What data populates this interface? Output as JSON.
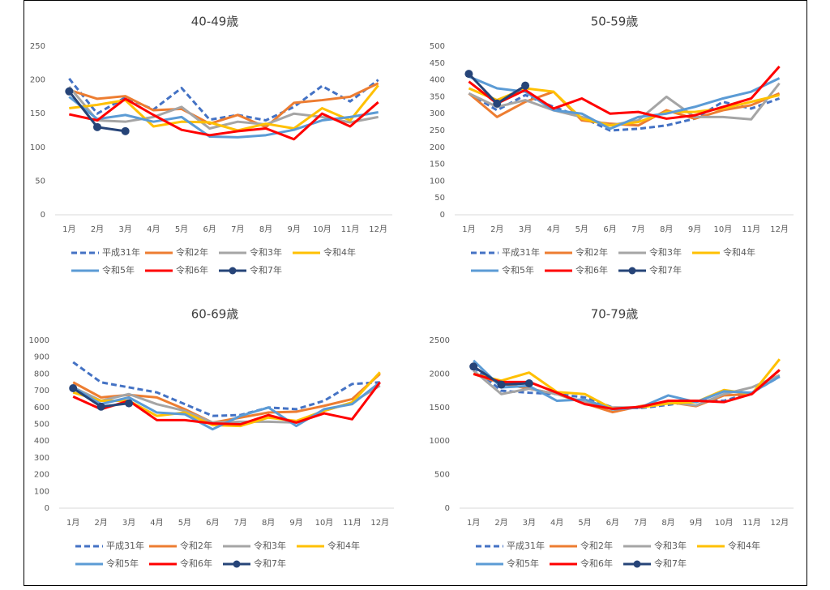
{
  "chart_data": [
    {
      "type": "line",
      "title": "40-49歳",
      "categories": [
        "1月",
        "2月",
        "3月",
        "4月",
        "5月",
        "6月",
        "7月",
        "8月",
        "9月",
        "10月",
        "11月",
        "12月"
      ],
      "ylim": [
        0,
        250
      ],
      "yticks": [
        0,
        50,
        100,
        150,
        200,
        250
      ],
      "series": [
        {
          "name": "平成31年",
          "color": "#4472c4",
          "dash": true,
          "values": [
            202,
            150,
            174,
            156,
            188,
            141,
            148,
            140,
            160,
            191,
            168,
            200
          ]
        },
        {
          "name": "令和2年",
          "color": "#ed7d31",
          "values": [
            185,
            172,
            176,
            155,
            157,
            135,
            148,
            130,
            166,
            170,
            175,
            195
          ]
        },
        {
          "name": "令和3年",
          "color": "#a5a5a5",
          "values": [
            190,
            140,
            138,
            145,
            160,
            128,
            138,
            134,
            150,
            145,
            137,
            145
          ]
        },
        {
          "name": "令和4年",
          "color": "#ffc000",
          "values": [
            158,
            163,
            170,
            131,
            138,
            137,
            125,
            135,
            128,
            158,
            140,
            192
          ]
        },
        {
          "name": "令和5年",
          "color": "#5b9bd5",
          "values": [
            175,
            142,
            148,
            138,
            145,
            116,
            115,
            118,
            126,
            140,
            145,
            152
          ]
        },
        {
          "name": "令和6年",
          "color": "#ff0000",
          "values": [
            149,
            140,
            172,
            148,
            126,
            118,
            124,
            128,
            112,
            150,
            131,
            167
          ]
        },
        {
          "name": "令和7年",
          "color": "#264478",
          "markers": true,
          "values": [
            183,
            130,
            124,
            null,
            null,
            null,
            null,
            null,
            null,
            null,
            null,
            null
          ]
        }
      ]
    },
    {
      "type": "line",
      "title": "50-59歳",
      "categories": [
        "1月",
        "2月",
        "3月",
        "4月",
        "5月",
        "6月",
        "7月",
        "8月",
        "9月",
        "10月",
        "11月",
        "12月"
      ],
      "ylim": [
        0,
        500
      ],
      "yticks": [
        0,
        50,
        100,
        150,
        200,
        250,
        300,
        350,
        400,
        450,
        500
      ],
      "series": [
        {
          "name": "平成31年",
          "color": "#4472c4",
          "dash": true,
          "values": [
            360,
            310,
            355,
            320,
            290,
            250,
            255,
            265,
            285,
            335,
            315,
            345
          ]
        },
        {
          "name": "令和2年",
          "color": "#ed7d31",
          "values": [
            360,
            290,
            335,
            365,
            280,
            270,
            265,
            310,
            285,
            310,
            325,
            360
          ]
        },
        {
          "name": "令和3年",
          "color": "#a5a5a5",
          "values": [
            360,
            320,
            340,
            310,
            290,
            265,
            280,
            350,
            290,
            290,
            283,
            390
          ]
        },
        {
          "name": "令和4年",
          "color": "#ffc000",
          "values": [
            375,
            340,
            375,
            365,
            285,
            265,
            275,
            305,
            305,
            315,
            335,
            355
          ]
        },
        {
          "name": "令和5年",
          "color": "#5b9bd5",
          "values": [
            410,
            375,
            365,
            310,
            300,
            255,
            290,
            300,
            320,
            345,
            365,
            405
          ]
        },
        {
          "name": "令和6年",
          "color": "#ff0000",
          "values": [
            395,
            330,
            370,
            315,
            345,
            300,
            305,
            285,
            295,
            320,
            345,
            440
          ]
        },
        {
          "name": "令和7年",
          "color": "#264478",
          "markers": true,
          "values": [
            418,
            330,
            383,
            null,
            null,
            null,
            null,
            null,
            null,
            null,
            null,
            null
          ]
        }
      ]
    },
    {
      "type": "line",
      "title": "60-69歳",
      "categories": [
        "1月",
        "2月",
        "3月",
        "4月",
        "5月",
        "6月",
        "7月",
        "8月",
        "9月",
        "10月",
        "11月",
        "12月"
      ],
      "ylim": [
        0,
        1000
      ],
      "yticks": [
        0,
        100,
        200,
        300,
        400,
        500,
        600,
        700,
        800,
        900,
        1000
      ],
      "series": [
        {
          "name": "平成31年",
          "color": "#4472c4",
          "dash": true,
          "values": [
            870,
            750,
            720,
            690,
            620,
            550,
            555,
            600,
            590,
            640,
            740,
            750
          ]
        },
        {
          "name": "令和2年",
          "color": "#ed7d31",
          "values": [
            750,
            660,
            675,
            660,
            590,
            510,
            540,
            570,
            575,
            610,
            650,
            800
          ]
        },
        {
          "name": "令和3年",
          "color": "#a5a5a5",
          "values": [
            720,
            640,
            680,
            620,
            580,
            510,
            515,
            515,
            510,
            580,
            630,
            730
          ]
        },
        {
          "name": "令和4年",
          "color": "#ffc000",
          "values": [
            690,
            640,
            640,
            550,
            570,
            495,
            490,
            540,
            520,
            580,
            630,
            810
          ]
        },
        {
          "name": "令和5年",
          "color": "#5b9bd5",
          "values": [
            720,
            620,
            660,
            570,
            560,
            470,
            550,
            600,
            490,
            590,
            620,
            750
          ]
        },
        {
          "name": "令和6年",
          "color": "#ff0000",
          "values": [
            665,
            590,
            640,
            525,
            525,
            505,
            500,
            555,
            510,
            565,
            530,
            750
          ]
        },
        {
          "name": "令和7年",
          "color": "#264478",
          "markers": true,
          "values": [
            715,
            605,
            625,
            null,
            null,
            null,
            null,
            null,
            null,
            null,
            null,
            null
          ]
        }
      ]
    },
    {
      "type": "line",
      "title": "70-79歳",
      "categories": [
        "1月",
        "2月",
        "3月",
        "4月",
        "5月",
        "6月",
        "7月",
        "8月",
        "9月",
        "10月",
        "11月",
        "12月"
      ],
      "ylim": [
        0,
        2500
      ],
      "yticks": [
        0,
        500,
        1000,
        1500,
        2000,
        2500
      ],
      "series": [
        {
          "name": "平成31年",
          "color": "#4472c4",
          "dash": true,
          "values": [
            2100,
            1750,
            1720,
            1700,
            1650,
            1500,
            1490,
            1540,
            1600,
            1600,
            1720,
            1960
          ]
        },
        {
          "name": "令和2年",
          "color": "#ed7d31",
          "values": [
            2000,
            1860,
            1780,
            1700,
            1560,
            1430,
            1520,
            1580,
            1520,
            1680,
            1700,
            2060
          ]
        },
        {
          "name": "令和3年",
          "color": "#a5a5a5",
          "values": [
            2050,
            1700,
            1780,
            1700,
            1580,
            1500,
            1500,
            1580,
            1530,
            1700,
            1800,
            1980
          ]
        },
        {
          "name": "令和4年",
          "color": "#ffc000",
          "values": [
            2000,
            1900,
            2020,
            1730,
            1700,
            1480,
            1500,
            1560,
            1580,
            1760,
            1700,
            2220
          ]
        },
        {
          "name": "令和5年",
          "color": "#5b9bd5",
          "values": [
            2200,
            1800,
            1820,
            1600,
            1620,
            1470,
            1500,
            1680,
            1580,
            1740,
            1720,
            1960
          ]
        },
        {
          "name": "令和6年",
          "color": "#ff0000",
          "values": [
            2000,
            1880,
            1880,
            1720,
            1550,
            1480,
            1510,
            1600,
            1600,
            1580,
            1700,
            2060
          ]
        },
        {
          "name": "令和7年",
          "color": "#264478",
          "markers": true,
          "values": [
            2110,
            1840,
            1860,
            null,
            null,
            null,
            null,
            null,
            null,
            null,
            null,
            null
          ]
        }
      ]
    }
  ]
}
